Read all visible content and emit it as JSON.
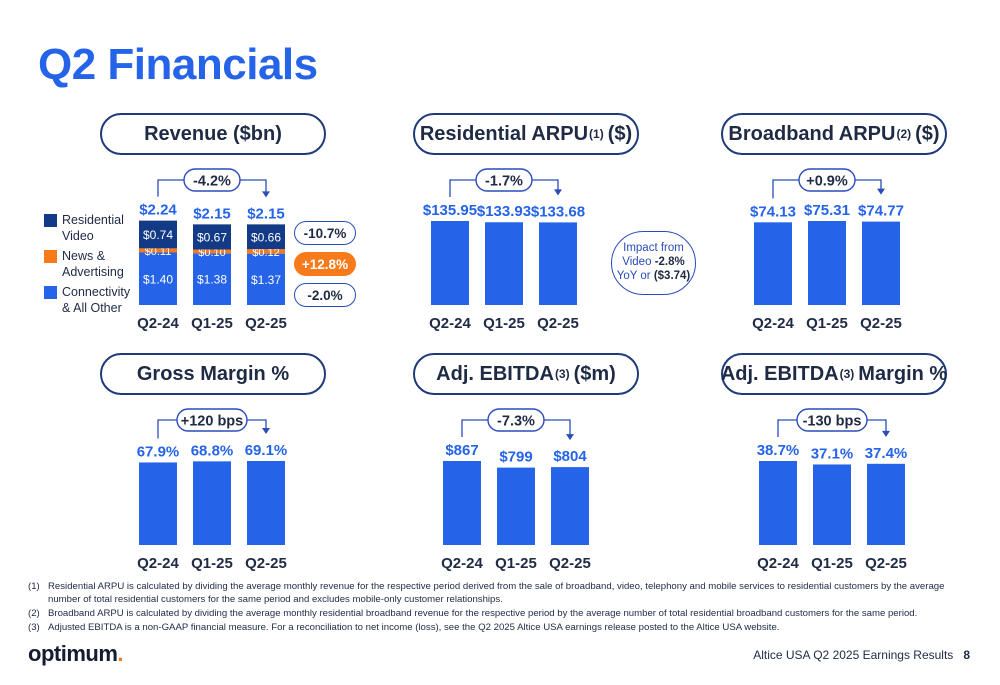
{
  "page": {
    "title": "Q2 Financials",
    "footer_text": "Altice USA Q2 2025 Earnings Results",
    "page_number": "8",
    "logo_text": "optimum",
    "logo_dot": "."
  },
  "colors": {
    "accent": "#2563e8",
    "bar": "#2563e8",
    "residential_video": "#123a86",
    "news_advertising": "#f77b1b",
    "connectivity": "#2563e8",
    "ink": "#1f2a44"
  },
  "panels": {
    "revenue": {
      "title": "Revenue ($bn)",
      "change": "-4.2%"
    },
    "res_arpu": {
      "title": "Residential ARPU",
      "sup": "(1)",
      "unit": "($)",
      "change": "-1.7%"
    },
    "bb_arpu": {
      "title": "Broadband ARPU",
      "sup": "(2)",
      "unit": "($)",
      "change": "+0.9%"
    },
    "gross_margin": {
      "title": "Gross Margin %",
      "change": "+120 bps"
    },
    "ebitda": {
      "title": "Adj. EBITDA",
      "sup": "(3)",
      "unit": "($m)",
      "change": "-7.3%"
    },
    "ebitda_margin": {
      "title": "Adj. EBITDA",
      "sup": "(3)",
      "unit": "Margin %",
      "change": "-130 bps"
    }
  },
  "legend": [
    {
      "label": "Residential Video",
      "color": "#123a86"
    },
    {
      "label": "News & Advertising",
      "color": "#f77b1b"
    },
    {
      "label": "Connectivity & All Other",
      "color": "#2563e8"
    }
  ],
  "segment_changes": {
    "video": "-10.7%",
    "news": "+12.8%",
    "connectivity": "-2.0%"
  },
  "arpu_callout": {
    "line1": "Impact from",
    "line2_prefix": "Video",
    "line2_value": "-2.8%",
    "line3_prefix": "YoY or",
    "line3_value": "($3.74)"
  },
  "chart_data": [
    {
      "id": "revenue",
      "type": "bar",
      "stacked": true,
      "title": "Revenue ($bn)",
      "categories": [
        "Q2-24",
        "Q1-25",
        "Q2-25"
      ],
      "series": [
        {
          "name": "Connectivity & All Other",
          "values": [
            1.4,
            1.38,
            1.37
          ],
          "labels": [
            "$1.40",
            "$1.38",
            "$1.37"
          ],
          "color": "#2563e8"
        },
        {
          "name": "News & Advertising",
          "values": [
            0.11,
            0.1,
            0.12
          ],
          "labels": [
            "$0.11",
            "$0.10",
            "$0.12"
          ],
          "color": "#f77b1b"
        },
        {
          "name": "Residential Video",
          "values": [
            0.74,
            0.67,
            0.66
          ],
          "labels": [
            "$0.74",
            "$0.67",
            "$0.66"
          ],
          "color": "#123a86"
        }
      ],
      "totals": [
        "$2.24",
        "$2.15",
        "$2.15"
      ],
      "ylim": [
        0,
        2.24
      ]
    },
    {
      "id": "res_arpu",
      "type": "bar",
      "title": "Residential ARPU (1) ($)",
      "categories": [
        "Q2-24",
        "Q1-25",
        "Q2-25"
      ],
      "values": [
        135.95,
        133.93,
        133.68
      ],
      "labels": [
        "$135.95",
        "$133.93",
        "$133.68"
      ]
    },
    {
      "id": "bb_arpu",
      "type": "bar",
      "title": "Broadband ARPU (2) ($)",
      "categories": [
        "Q2-24",
        "Q1-25",
        "Q2-25"
      ],
      "values": [
        74.13,
        75.31,
        74.77
      ],
      "labels": [
        "$74.13",
        "$75.31",
        "$74.77"
      ]
    },
    {
      "id": "gross_margin",
      "type": "bar",
      "title": "Gross Margin %",
      "categories": [
        "Q2-24",
        "Q1-25",
        "Q2-25"
      ],
      "values": [
        67.9,
        68.8,
        69.1
      ],
      "labels": [
        "67.9%",
        "68.8%",
        "69.1%"
      ]
    },
    {
      "id": "ebitda",
      "type": "bar",
      "title": "Adj. EBITDA (3) ($m)",
      "categories": [
        "Q2-24",
        "Q1-25",
        "Q2-25"
      ],
      "values": [
        867,
        799,
        804
      ],
      "labels": [
        "$867",
        "$799",
        "$804"
      ]
    },
    {
      "id": "ebitda_margin",
      "type": "bar",
      "title": "Adj. EBITDA (3) Margin %",
      "categories": [
        "Q2-24",
        "Q1-25",
        "Q2-25"
      ],
      "values": [
        38.7,
        37.1,
        37.4
      ],
      "labels": [
        "38.7%",
        "37.1%",
        "37.4%"
      ]
    }
  ],
  "footnotes": [
    {
      "num": "(1)",
      "text": "Residential ARPU is calculated by dividing the average monthly revenue for the respective period derived from the sale of broadband, video, telephony and mobile services to residential customers by the average number of total residential customers for the same period and excludes mobile-only customer relationships."
    },
    {
      "num": "(2)",
      "text": "Broadband ARPU is calculated by dividing the average monthly residential broadband revenue for the respective period by the average number of total residential broadband customers for the same period."
    },
    {
      "num": "(3)",
      "text": "Adjusted EBITDA is a non-GAAP financial measure. For a reconciliation to net income (loss), see the Q2 2025 Altice USA earnings release posted to the Altice USA website."
    }
  ]
}
